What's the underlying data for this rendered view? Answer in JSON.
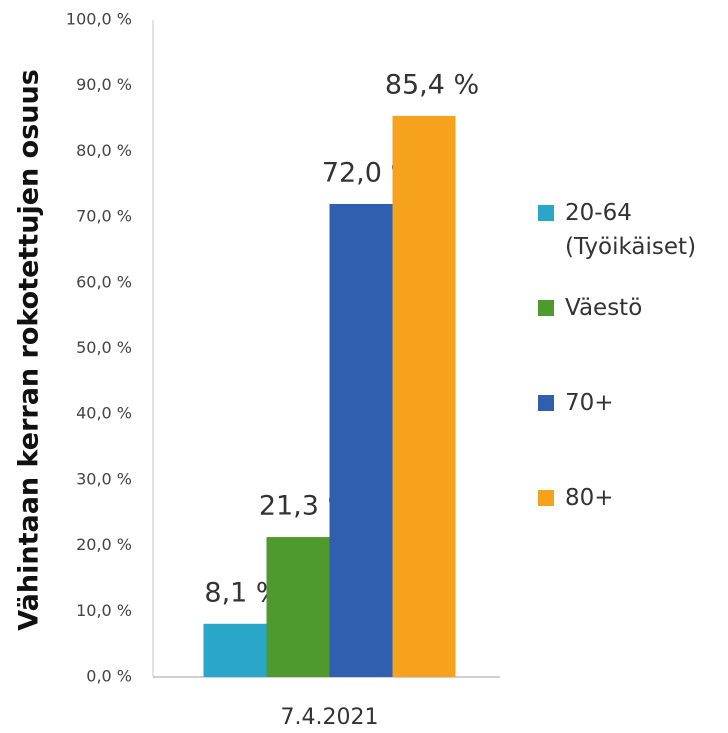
{
  "chart_data": {
    "type": "bar",
    "y_label": "Vähintaan kerran rokotettujen osuus",
    "categories": [
      "7.4.2021"
    ],
    "series": [
      {
        "name": "20-64 (Työikäiset)",
        "color": "#2aa6c9",
        "values": [
          8.1
        ],
        "value_labels": [
          "8,1 %"
        ]
      },
      {
        "name": "Väestö",
        "color": "#4e9a2f",
        "values": [
          21.3
        ],
        "value_labels": [
          "21,3 %"
        ]
      },
      {
        "name": "70+",
        "color": "#2f5fae",
        "values": [
          72.0
        ],
        "value_labels": [
          "72,0 %"
        ]
      },
      {
        "name": "80+",
        "color": "#f6a21c",
        "values": [
          85.4
        ],
        "value_labels": [
          "85,4 %"
        ]
      }
    ],
    "ylim": [
      0,
      100
    ],
    "yticks": [
      {
        "value": 0,
        "label": "0,0 %"
      },
      {
        "value": 10,
        "label": "10,0 %"
      },
      {
        "value": 20,
        "label": "20,0 %"
      },
      {
        "value": 30,
        "label": "30,0 %"
      },
      {
        "value": 40,
        "label": "40,0 %"
      },
      {
        "value": 50,
        "label": "50,0 %"
      },
      {
        "value": 60,
        "label": "60,0 %"
      },
      {
        "value": 70,
        "label": "70,0 %"
      },
      {
        "value": 80,
        "label": "80,0 %"
      },
      {
        "value": 90,
        "label": "90,0 %"
      },
      {
        "value": 100,
        "label": "100,0 %"
      }
    ],
    "grid": false,
    "legend": "right"
  }
}
